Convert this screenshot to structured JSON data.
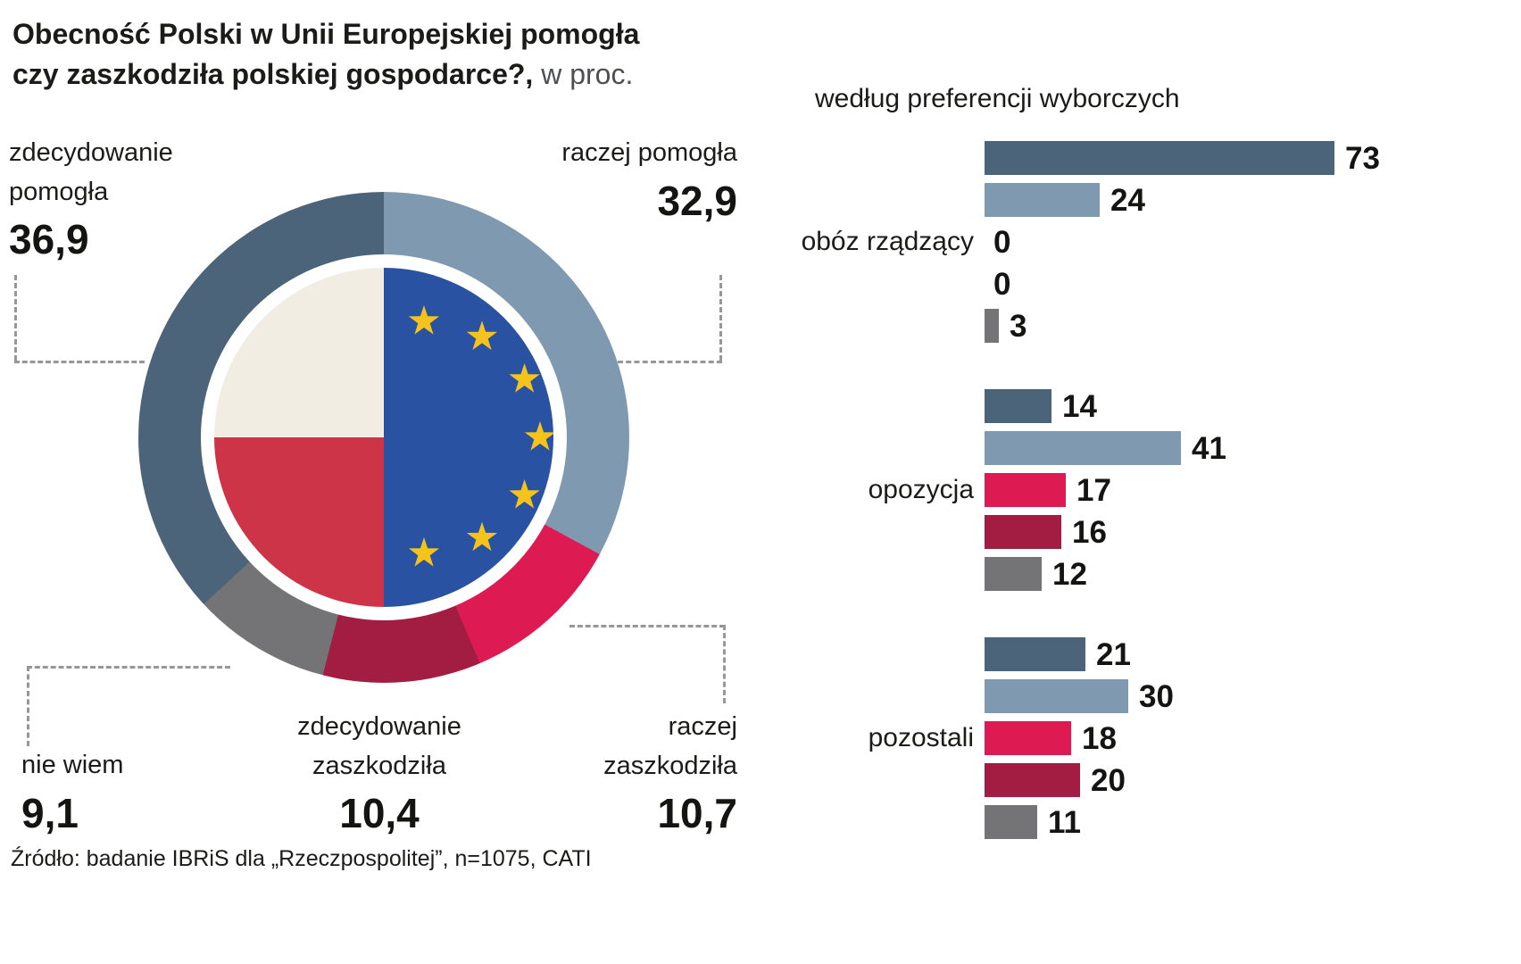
{
  "header": {
    "title_bold_line1": "Obecność Polski w Unii Europejskiej pomogła",
    "title_bold_line2": "czy zaszkodziła polskiej gospodarce?,",
    "title_suffix": "w proc.",
    "right_title": "według preferencji wyborczych"
  },
  "source": "Źródło: badanie IBRiS dla „Rzeczpospolitej”, n=1075, CATI",
  "chart_data": [
    {
      "type": "pie",
      "subtype": "donut",
      "title": "Obecność Polski w Unii Europejskiej pomogła czy zaszkodziła polskiej gospodarce?, w proc.",
      "center_image": "poland-eu-flag",
      "start_angle_deg": 0,
      "direction": "clockwise",
      "segments": [
        {
          "label": "raczej pomogła",
          "value": 32.9,
          "display": "32,9",
          "color": "#7f9ab0"
        },
        {
          "label": "raczej zaszkodziła",
          "value": 10.7,
          "display": "10,7",
          "color": "#de1a52"
        },
        {
          "label": "zdecydowanie zaszkodziła",
          "value": 10.4,
          "display": "10,4",
          "color": "#a31d42"
        },
        {
          "label": "nie wiem",
          "value": 9.1,
          "display": "9,1",
          "color": "#747476"
        },
        {
          "label": "zdecydowanie pomogła",
          "value": 36.9,
          "display": "36,9",
          "color": "#4c6479"
        }
      ]
    },
    {
      "type": "bar",
      "orientation": "horizontal",
      "title": "według preferencji wyborczych",
      "series_order": [
        "zdecydowanie pomogła",
        "raczej pomogła",
        "raczej zaszkodziła",
        "zdecydowanie zaszkodziła",
        "nie wiem"
      ],
      "series_colors": [
        "#4c6479",
        "#7f9ab0",
        "#de1a52",
        "#a31d42",
        "#747476"
      ],
      "groups": [
        {
          "label": "obóz rządzący",
          "values": [
            73,
            24,
            0,
            0,
            3
          ]
        },
        {
          "label": "opozycja",
          "values": [
            14,
            41,
            17,
            16,
            12
          ]
        },
        {
          "label": "pozostali",
          "values": [
            21,
            30,
            18,
            20,
            11
          ]
        }
      ],
      "xlim": [
        0,
        80
      ]
    }
  ]
}
